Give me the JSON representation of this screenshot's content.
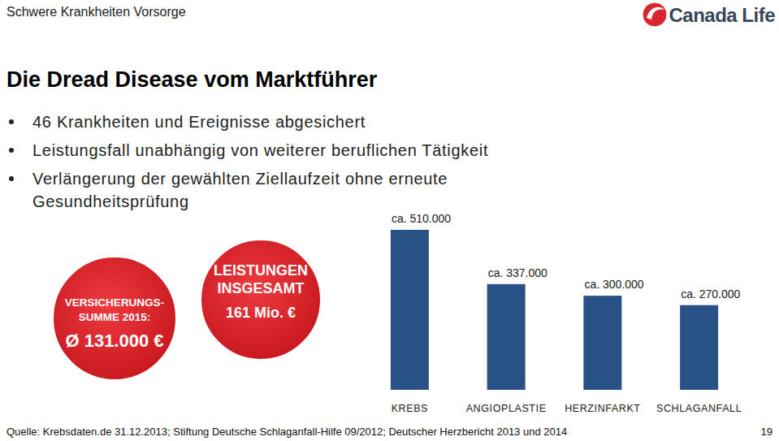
{
  "header": {
    "label": "Schwere Krankheiten Vorsorge",
    "logo": "Canada Life"
  },
  "title": "Die Dread Disease vom Marktführer",
  "bullets": [
    "46 Krankheiten und Ereignisse abgesichert",
    "Leistungsfall unabhängig von weiterer beruflichen Tätigkeit",
    "Verlängerung der gewählten Ziellaufzeit ohne erneute Gesundheitsprüfung"
  ],
  "circles": [
    {
      "label": [
        "VERSICHERUNGS-",
        "SUMME 2015:"
      ],
      "value": "Ø 131.000 €"
    },
    {
      "label": [
        "LEISTUNGEN",
        "INSGESAMT"
      ],
      "value": "161 Mio. €"
    }
  ],
  "chart_data": {
    "type": "bar",
    "categories": [
      "KREBS",
      "ANGIOPLASTIE",
      "HERZINFARKT",
      "SCHLAGANFALL"
    ],
    "values": [
      510000,
      337000,
      300000,
      270000
    ],
    "value_labels": [
      "ca. 510.000",
      "ca. 337.000",
      "ca. 300.000",
      "ca. 270.000"
    ],
    "color": "#285185",
    "ylim": [
      0,
      510000
    ],
    "data_labels": true,
    "tick_labels": "x"
  },
  "source": "Quelle: Krebsdaten.de 31.12.2013; Stiftung Deutsche Schlaganfall-Hilfe 09/2012; Deutscher Herzbericht 2013 und 2014",
  "page": 19
}
